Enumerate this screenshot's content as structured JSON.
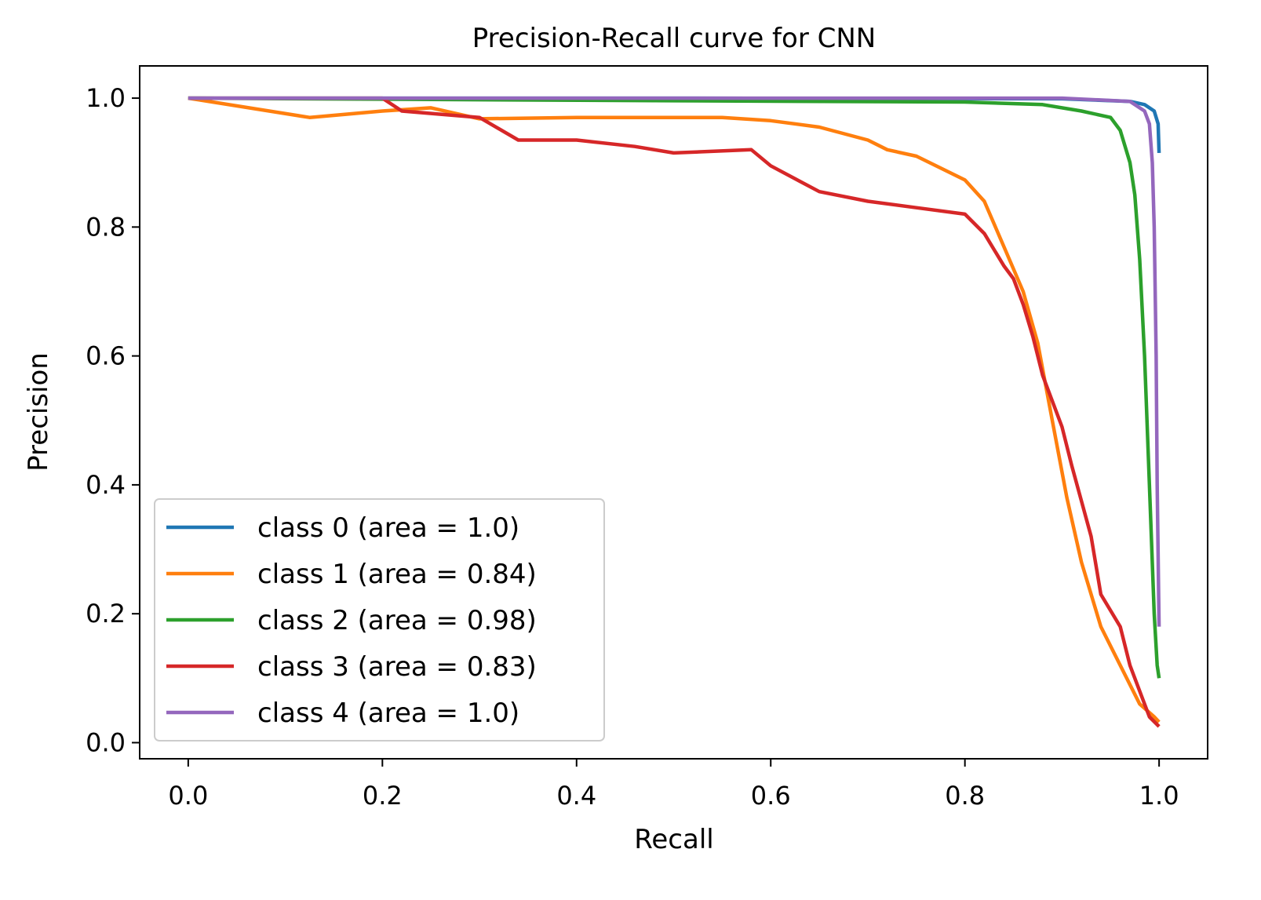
{
  "chart_data": {
    "type": "line",
    "title": "Precision-Recall curve for CNN",
    "xlabel": "Recall",
    "ylabel": "Precision",
    "xlim": [
      -0.05,
      1.05
    ],
    "ylim": [
      -0.025,
      1.05
    ],
    "xticks": [
      0.0,
      0.2,
      0.4,
      0.6,
      0.8,
      1.0
    ],
    "xtick_labels": [
      "0.0",
      "0.2",
      "0.4",
      "0.6",
      "0.8",
      "1.0"
    ],
    "yticks": [
      0.0,
      0.2,
      0.4,
      0.6,
      0.8,
      1.0
    ],
    "ytick_labels": [
      "0.0",
      "0.2",
      "0.4",
      "0.6",
      "0.8",
      "1.0"
    ],
    "grid": false,
    "legend_position": "lower-left",
    "series": [
      {
        "name": "class 0 (area = 1.0)",
        "color": "#1f77b4",
        "points": [
          [
            0.0,
            1.0
          ],
          [
            0.5,
            1.0
          ],
          [
            0.9,
            0.999
          ],
          [
            0.97,
            0.995
          ],
          [
            0.985,
            0.99
          ],
          [
            0.995,
            0.98
          ],
          [
            0.999,
            0.96
          ],
          [
            1.0,
            0.915
          ]
        ]
      },
      {
        "name": "class 1 (area = 0.84)",
        "color": "#ff7f0e",
        "points": [
          [
            0.0,
            1.0
          ],
          [
            0.125,
            0.97
          ],
          [
            0.2,
            0.98
          ],
          [
            0.25,
            0.985
          ],
          [
            0.3,
            0.968
          ],
          [
            0.4,
            0.97
          ],
          [
            0.5,
            0.97
          ],
          [
            0.55,
            0.97
          ],
          [
            0.6,
            0.965
          ],
          [
            0.65,
            0.955
          ],
          [
            0.7,
            0.935
          ],
          [
            0.72,
            0.92
          ],
          [
            0.75,
            0.91
          ],
          [
            0.8,
            0.873
          ],
          [
            0.82,
            0.84
          ],
          [
            0.84,
            0.77
          ],
          [
            0.86,
            0.7
          ],
          [
            0.875,
            0.62
          ],
          [
            0.89,
            0.5
          ],
          [
            0.905,
            0.38
          ],
          [
            0.92,
            0.28
          ],
          [
            0.94,
            0.18
          ],
          [
            0.96,
            0.12
          ],
          [
            0.98,
            0.06
          ],
          [
            0.995,
            0.04
          ],
          [
            1.0,
            0.032
          ]
        ]
      },
      {
        "name": "class 2 (area = 0.98)",
        "color": "#2ca02c",
        "points": [
          [
            0.0,
            1.0
          ],
          [
            0.5,
            0.996
          ],
          [
            0.8,
            0.994
          ],
          [
            0.88,
            0.99
          ],
          [
            0.92,
            0.98
          ],
          [
            0.95,
            0.97
          ],
          [
            0.96,
            0.95
          ],
          [
            0.97,
            0.9
          ],
          [
            0.975,
            0.85
          ],
          [
            0.98,
            0.75
          ],
          [
            0.985,
            0.6
          ],
          [
            0.99,
            0.4
          ],
          [
            0.995,
            0.2
          ],
          [
            0.998,
            0.12
          ],
          [
            1.0,
            0.1
          ]
        ]
      },
      {
        "name": "class 3 (area = 0.83)",
        "color": "#d62728",
        "points": [
          [
            0.0,
            1.0
          ],
          [
            0.2,
            1.0
          ],
          [
            0.22,
            0.98
          ],
          [
            0.3,
            0.97
          ],
          [
            0.34,
            0.935
          ],
          [
            0.4,
            0.935
          ],
          [
            0.46,
            0.925
          ],
          [
            0.5,
            0.915
          ],
          [
            0.58,
            0.92
          ],
          [
            0.6,
            0.895
          ],
          [
            0.65,
            0.855
          ],
          [
            0.7,
            0.84
          ],
          [
            0.75,
            0.83
          ],
          [
            0.8,
            0.82
          ],
          [
            0.82,
            0.79
          ],
          [
            0.84,
            0.74
          ],
          [
            0.85,
            0.72
          ],
          [
            0.86,
            0.68
          ],
          [
            0.87,
            0.63
          ],
          [
            0.88,
            0.57
          ],
          [
            0.9,
            0.49
          ],
          [
            0.91,
            0.43
          ],
          [
            0.93,
            0.32
          ],
          [
            0.94,
            0.23
          ],
          [
            0.96,
            0.18
          ],
          [
            0.97,
            0.12
          ],
          [
            0.99,
            0.04
          ],
          [
            1.0,
            0.025
          ]
        ]
      },
      {
        "name": "class 4 (area = 1.0)",
        "color": "#9467bd",
        "points": [
          [
            0.0,
            1.0
          ],
          [
            0.9,
            1.0
          ],
          [
            0.97,
            0.995
          ],
          [
            0.985,
            0.98
          ],
          [
            0.99,
            0.96
          ],
          [
            0.993,
            0.9
          ],
          [
            0.995,
            0.8
          ],
          [
            0.997,
            0.6
          ],
          [
            0.998,
            0.4
          ],
          [
            1.0,
            0.18
          ]
        ]
      }
    ]
  }
}
